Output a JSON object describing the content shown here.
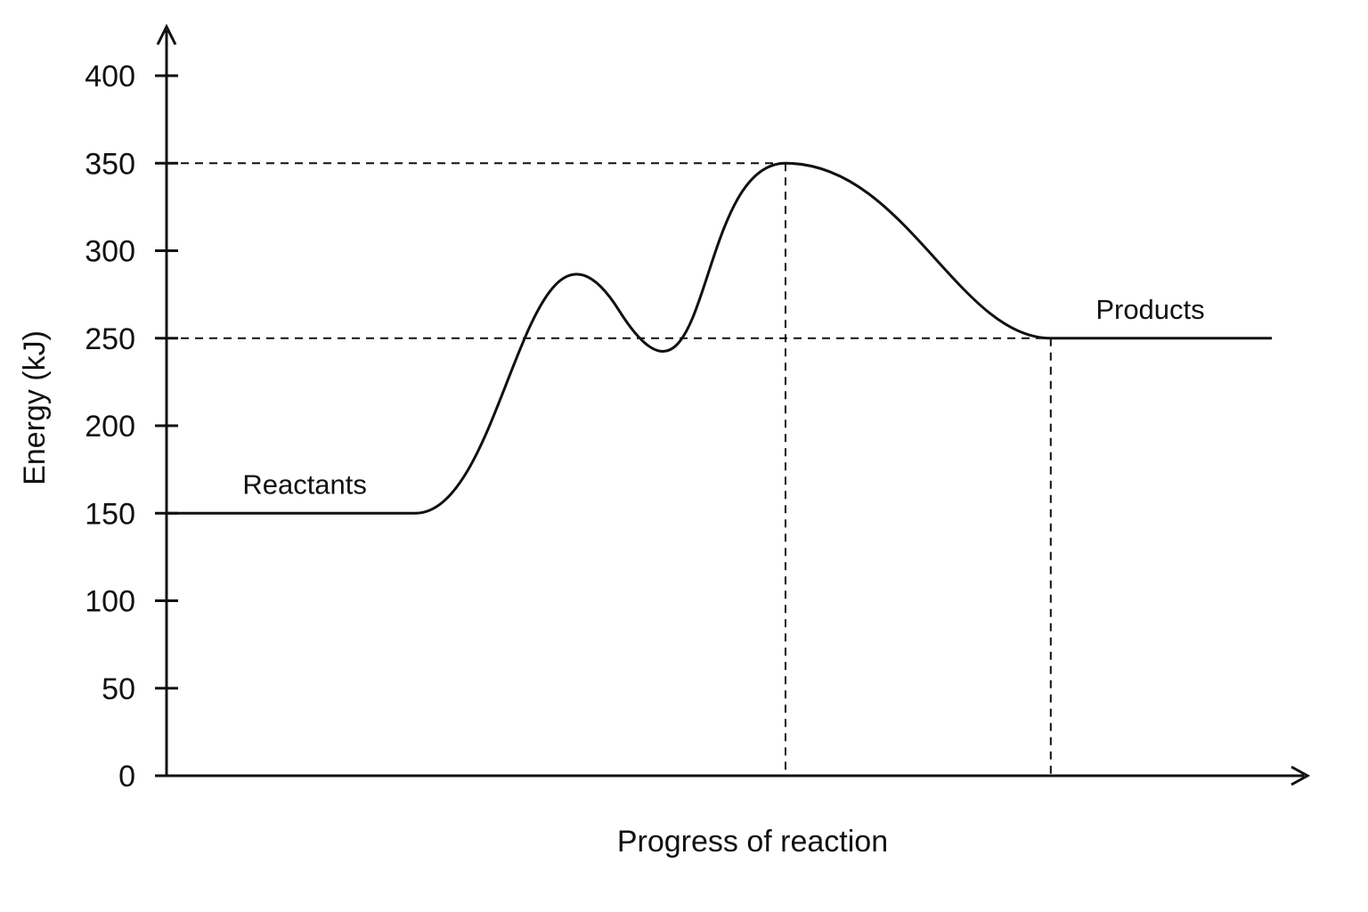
{
  "chart_data": {
    "type": "line",
    "title": "",
    "xlabel": "Progress of reaction",
    "ylabel": "Energy (kJ)",
    "ylim": [
      0,
      400
    ],
    "yticks": [
      0,
      50,
      100,
      150,
      200,
      250,
      300,
      350,
      400
    ],
    "ytick_labels": [
      "0",
      "50",
      "100",
      "150",
      "200",
      "250",
      "300",
      "350",
      "400"
    ],
    "grid": false,
    "series": [
      {
        "points": [
          {
            "x": 0,
            "y": 150
          },
          {
            "x": 22.5,
            "y": 150
          },
          {
            "x": 56,
            "y": 350
          },
          {
            "x": 80,
            "y": 250
          },
          {
            "x": 100,
            "y": 250
          }
        ]
      }
    ],
    "reference_lines": {
      "horizontal": [
        350,
        250
      ],
      "vertical": [
        56,
        80
      ]
    },
    "annotations": [
      {
        "text": "Reactants",
        "x": 12.5,
        "y": 150
      },
      {
        "text": "Products",
        "x": 89,
        "y": 250
      }
    ]
  },
  "colors": {
    "line": "#111111",
    "background": "#ffffff"
  }
}
